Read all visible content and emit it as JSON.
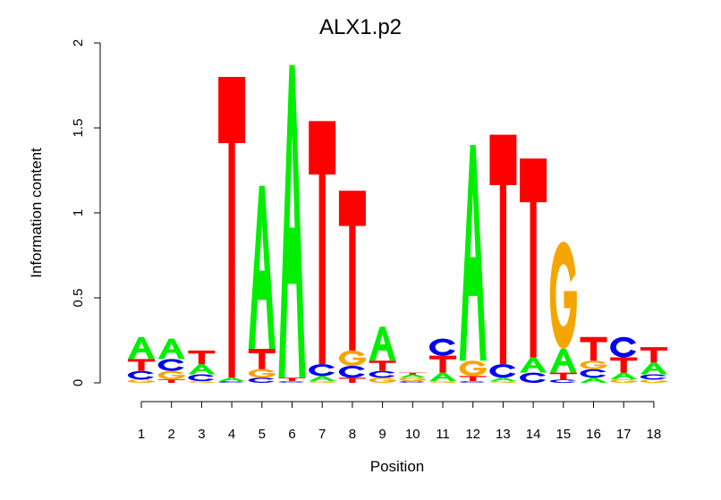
{
  "chart_data": {
    "type": "sequence-logo",
    "title": "ALX1.p2",
    "xlabel": "Position",
    "ylabel": "Information content",
    "ylim": [
      0,
      2
    ],
    "yticks": [
      "0",
      "0.5",
      "1",
      "1.5",
      "2"
    ],
    "positions": [
      "1",
      "2",
      "3",
      "4",
      "5",
      "6",
      "7",
      "8",
      "9",
      "10",
      "11",
      "12",
      "13",
      "14",
      "15",
      "16",
      "17",
      "18"
    ],
    "letter_colors": {
      "A": "#00ee00",
      "C": "#0000ee",
      "G": "#f5a500",
      "T": "#ff0000"
    },
    "stacks": [
      [
        [
          "G",
          0.02
        ],
        [
          "C",
          0.05
        ],
        [
          "T",
          0.07
        ],
        [
          "A",
          0.13
        ]
      ],
      [
        [
          "T",
          0.02
        ],
        [
          "G",
          0.05
        ],
        [
          "C",
          0.07
        ],
        [
          "A",
          0.12
        ]
      ],
      [
        [
          "G",
          0.01
        ],
        [
          "C",
          0.04
        ],
        [
          "A",
          0.06
        ],
        [
          "T",
          0.08
        ]
      ],
      [
        [
          "C",
          0.01
        ],
        [
          "A",
          0.02
        ],
        [
          "T",
          1.77
        ]
      ],
      [
        [
          "C",
          0.03
        ],
        [
          "G",
          0.05
        ],
        [
          "T",
          0.12
        ],
        [
          "A",
          0.96
        ]
      ],
      [
        [
          "C",
          0.01
        ],
        [
          "T",
          0.02
        ],
        [
          "A",
          1.84
        ]
      ],
      [
        [
          "G",
          0.01
        ],
        [
          "A",
          0.03
        ],
        [
          "C",
          0.07
        ],
        [
          "T",
          1.43
        ]
      ],
      [
        [
          "T",
          0.03
        ],
        [
          "C",
          0.07
        ],
        [
          "G",
          0.09
        ],
        [
          "T",
          0.94
        ]
      ],
      [
        [
          "G",
          0.03
        ],
        [
          "C",
          0.04
        ],
        [
          "T",
          0.06
        ],
        [
          "A",
          0.2
        ]
      ],
      [
        [
          "C",
          0.01
        ],
        [
          "G",
          0.02
        ],
        [
          "A",
          0.02
        ],
        [
          "T",
          0.01
        ]
      ],
      [
        [
          "G",
          0.01
        ],
        [
          "A",
          0.05
        ],
        [
          "T",
          0.1
        ],
        [
          "C",
          0.1
        ]
      ],
      [
        [
          "C",
          0.01
        ],
        [
          "T",
          0.03
        ],
        [
          "G",
          0.09
        ],
        [
          "A",
          1.27
        ]
      ],
      [
        [
          "G",
          0.01
        ],
        [
          "A",
          0.02
        ],
        [
          "C",
          0.08
        ],
        [
          "T",
          1.35
        ]
      ],
      [
        [
          "C",
          0.06
        ],
        [
          "A",
          0.09
        ],
        [
          "T",
          1.17
        ]
      ],
      [
        [
          "C",
          0.02
        ],
        [
          "T",
          0.04
        ],
        [
          "A",
          0.14
        ],
        [
          "G",
          0.63
        ]
      ],
      [
        [
          "A",
          0.03
        ],
        [
          "C",
          0.05
        ],
        [
          "G",
          0.05
        ],
        [
          "T",
          0.14
        ]
      ],
      [
        [
          "G",
          0.02
        ],
        [
          "A",
          0.04
        ],
        [
          "T",
          0.09
        ],
        [
          "C",
          0.12
        ]
      ],
      [
        [
          "G",
          0.02
        ],
        [
          "C",
          0.03
        ],
        [
          "A",
          0.07
        ],
        [
          "T",
          0.09
        ]
      ]
    ]
  }
}
